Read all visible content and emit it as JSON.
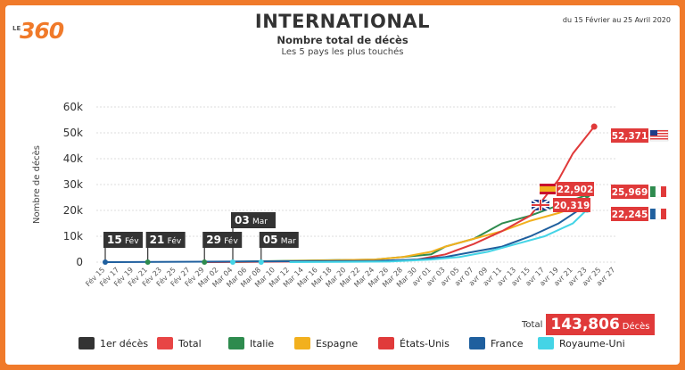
{
  "brand": {
    "prefix": "LE",
    "number": "360"
  },
  "chart_data": {
    "type": "line",
    "title": "INTERNATIONAL",
    "subtitle": "Nombre total de décès",
    "subtitle2": "Les 5 pays les plus touchés",
    "date_range": "du 15 Février au 25 Avril 2020",
    "ylabel": "Nombre de décès",
    "ylim": [
      0,
      60000
    ],
    "yticks": [
      0,
      10000,
      20000,
      30000,
      40000,
      50000,
      60000
    ],
    "ytick_labels": [
      "0",
      "10k",
      "20k",
      "30k",
      "40k",
      "50k",
      "60k"
    ],
    "x_labels": [
      "Fév 15",
      "Fév 17",
      "Fév 19",
      "Fév 21",
      "Fév 23",
      "Fév 25",
      "Fév 27",
      "Fév 29",
      "Mar 02",
      "Mar 04",
      "Mar 06",
      "Mar 08",
      "Mar 10",
      "Mar 12",
      "Mar 14",
      "Mar 16",
      "Mar 18",
      "Mar 20",
      "Mar 22",
      "Mar 24",
      "Mar 26",
      "Mar 28",
      "Mar 30",
      "avr 01",
      "avr 03",
      "avr 05",
      "avr 07",
      "avr 09",
      "avr 11",
      "avr 13",
      "avr 15",
      "avr 17",
      "avr 19",
      "avr 21",
      "avr 23",
      "avr 25",
      "avr 27"
    ],
    "series": [
      {
        "name": "Italie",
        "color": "#2e8b4e",
        "points": [
          [
            7,
            0
          ],
          [
            19,
            1
          ],
          [
            21,
            2
          ],
          [
            23,
            3
          ],
          [
            24,
            6
          ],
          [
            26,
            9
          ],
          [
            27,
            12
          ],
          [
            28,
            15
          ],
          [
            30,
            18
          ],
          [
            32,
            22
          ],
          [
            34,
            26
          ]
        ]
      },
      {
        "name": "Espagne",
        "color": "#f2b01e",
        "points": [
          [
            9,
            0
          ],
          [
            19,
            1
          ],
          [
            21,
            2
          ],
          [
            23,
            4
          ],
          [
            24,
            6
          ],
          [
            26,
            9
          ],
          [
            28,
            12
          ],
          [
            30,
            16
          ],
          [
            32,
            19
          ],
          [
            34,
            22.9
          ]
        ]
      },
      {
        "name": "États-Unis",
        "color": "#e03a3a",
        "points": [
          [
            7,
            0
          ],
          [
            20,
            0.5
          ],
          [
            22,
            1
          ],
          [
            24,
            3
          ],
          [
            26,
            7
          ],
          [
            28,
            12
          ],
          [
            30,
            18
          ],
          [
            31,
            25
          ],
          [
            32,
            32
          ],
          [
            33,
            42
          ],
          [
            34.5,
            52.4
          ]
        ]
      },
      {
        "name": "France",
        "color": "#1f5f9e",
        "points": [
          [
            0,
            0
          ],
          [
            19,
            0.5
          ],
          [
            22,
            1
          ],
          [
            24,
            2
          ],
          [
            26,
            4
          ],
          [
            28,
            6
          ],
          [
            30,
            10
          ],
          [
            32,
            15
          ],
          [
            34,
            22.2
          ]
        ]
      },
      {
        "name": "Royaume-Uni",
        "color": "#44d4e6",
        "points": [
          [
            13,
            0
          ],
          [
            20,
            0.2
          ],
          [
            23,
            1
          ],
          [
            25,
            2
          ],
          [
            27,
            4
          ],
          [
            29,
            7
          ],
          [
            31,
            10
          ],
          [
            33,
            15
          ],
          [
            34,
            20.3
          ]
        ]
      }
    ],
    "first_deaths": [
      {
        "day": "15",
        "month": "Fév"
      },
      {
        "day": "21",
        "month": "Fév"
      },
      {
        "day": "29",
        "month": "Fév"
      },
      {
        "day": "03",
        "month": "Mar"
      },
      {
        "day": "05",
        "month": "Mar"
      }
    ],
    "end_labels": [
      {
        "country": "États-Unis",
        "value": "52,371",
        "flag": "us-flag-icon"
      },
      {
        "country": "Italie",
        "value": "25,969",
        "flag": "italy-flag-icon"
      },
      {
        "country": "Espagne",
        "value": "22,902",
        "flag": "spain-flag-icon"
      },
      {
        "country": "France",
        "value": "22,245",
        "flag": "france-flag-icon"
      },
      {
        "country": "Royaume-Uni",
        "value": "20,319",
        "flag": "uk-flag-icon"
      }
    ],
    "total": {
      "label": "Total",
      "value": "143,806",
      "unit": "Décès"
    },
    "legend": [
      {
        "label": "1er décès",
        "color": "#333333"
      },
      {
        "label": "Total",
        "color": "#e84545"
      },
      {
        "label": "Italie",
        "color": "#2e8b4e"
      },
      {
        "label": "Espagne",
        "color": "#f2b01e"
      },
      {
        "label": "États-Unis",
        "color": "#e03a3a"
      },
      {
        "label": "France",
        "color": "#1f5f9e"
      },
      {
        "label": "Royaume-Uni",
        "color": "#44d4e6"
      }
    ],
    "grid": true
  }
}
